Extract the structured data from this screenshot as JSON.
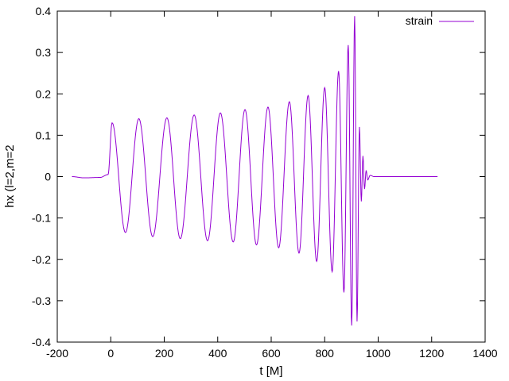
{
  "chart_data": {
    "type": "line",
    "title": "",
    "xlabel": "t [M]",
    "ylabel": "hx (l=2,m=2",
    "xlim": [
      -200,
      1400
    ],
    "ylim": [
      -0.4,
      0.4
    ],
    "x_ticks": [
      "-200",
      "0",
      "200",
      "400",
      "600",
      "800",
      "1000",
      "1200",
      "1400"
    ],
    "y_ticks": [
      "0.4",
      "0.3",
      "0.2",
      "0.1",
      "0",
      "-0.1",
      "-0.2",
      "-0.3",
      "-0.4"
    ],
    "legend_position": "top-right",
    "grid": false,
    "series": [
      {
        "name": "strain",
        "color": "#9400d3",
        "x_start": -145,
        "x_end": 1222,
        "extrema": [
          [
            -145,
            0.0
          ],
          [
            -100,
            -0.003
          ],
          [
            -40,
            -0.002
          ],
          [
            -10,
            0.005
          ],
          [
            5,
            0.13
          ],
          [
            55,
            -0.135
          ],
          [
            105,
            0.14
          ],
          [
            157,
            -0.145
          ],
          [
            210,
            0.142
          ],
          [
            260,
            -0.15
          ],
          [
            312,
            0.149
          ],
          [
            362,
            -0.155
          ],
          [
            410,
            0.154
          ],
          [
            458,
            -0.158
          ],
          [
            502,
            0.162
          ],
          [
            545,
            -0.165
          ],
          [
            588,
            0.168
          ],
          [
            628,
            -0.172
          ],
          [
            668,
            0.181
          ],
          [
            704,
            -0.185
          ],
          [
            738,
            0.196
          ],
          [
            770,
            -0.205
          ],
          [
            800,
            0.215
          ],
          [
            828,
            -0.23
          ],
          [
            852,
            0.255
          ],
          [
            872,
            -0.28
          ],
          [
            888,
            0.318
          ],
          [
            901,
            -0.36
          ],
          [
            912,
            0.388
          ],
          [
            921,
            -0.35
          ],
          [
            930,
            0.12
          ],
          [
            937,
            -0.06
          ],
          [
            943,
            0.05
          ],
          [
            949,
            -0.03
          ],
          [
            955,
            0.015
          ],
          [
            961,
            -0.008
          ],
          [
            970,
            0.003
          ],
          [
            985,
            0.0
          ],
          [
            1222,
            0.0
          ]
        ]
      }
    ]
  }
}
